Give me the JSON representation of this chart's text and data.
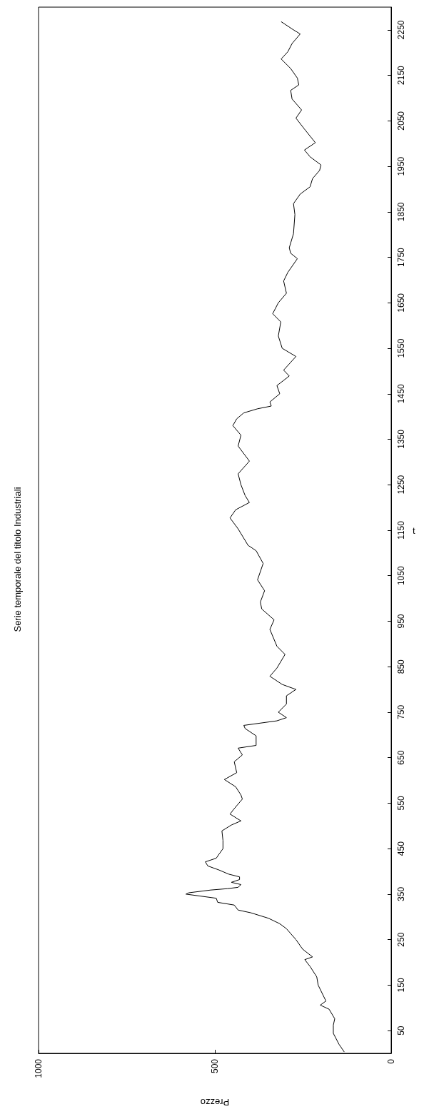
{
  "chart_data": {
    "type": "line",
    "title": "Serie temporale del titolo Industriali",
    "xlabel": "Prezzo",
    "ylabel": "t",
    "x": [
      133,
      148,
      164,
      164,
      160,
      176,
      201,
      185,
      207,
      211,
      230,
      245,
      223,
      251,
      270,
      297,
      316,
      348,
      398,
      434,
      445,
      492,
      496,
      582,
      574,
      512,
      465,
      434,
      426,
      453,
      430,
      430,
      461,
      488,
      520,
      527,
      496,
      488,
      477,
      477,
      480,
      453,
      426,
      457,
      445,
      422,
      426,
      441,
      473,
      438,
      445,
      422,
      434,
      383,
      383,
      414,
      418,
      324,
      297,
      320,
      297,
      297,
      270,
      309,
      344,
      324,
      301,
      324,
      344,
      332,
      367,
      371,
      359,
      379,
      363,
      383,
      406,
      434,
      457,
      441,
      402,
      414,
      426,
      434,
      402,
      434,
      426,
      449,
      438,
      418,
      379,
      340,
      344,
      316,
      324,
      289,
      305,
      270,
      309,
      320,
      313,
      336,
      320,
      297,
      305,
      293,
      266,
      285,
      289,
      277,
      273,
      277,
      258,
      230,
      223,
      203,
      199,
      230,
      246,
      215,
      246,
      270,
      254,
      281,
      285,
      262,
      266,
      285,
      312,
      293,
      281,
      258,
      277,
      312
    ],
    "values": [
      3,
      20,
      44,
      62,
      76,
      97,
      106,
      115,
      150,
      168,
      191,
      206,
      212,
      229,
      250,
      274,
      285,
      297,
      309,
      315,
      326,
      332,
      341,
      350,
      353,
      359,
      362,
      365,
      371,
      376,
      382,
      388,
      394,
      403,
      412,
      421,
      429,
      438,
      450,
      468,
      489,
      502,
      511,
      526,
      538,
      559,
      568,
      586,
      602,
      617,
      641,
      656,
      671,
      677,
      698,
      714,
      721,
      731,
      738,
      750,
      768,
      786,
      800,
      811,
      829,
      847,
      877,
      895,
      932,
      953,
      977,
      992,
      1017,
      1041,
      1077,
      1105,
      1117,
      1153,
      1177,
      1195,
      1211,
      1226,
      1250,
      1274,
      1302,
      1335,
      1359,
      1380,
      1395,
      1408,
      1417,
      1423,
      1432,
      1450,
      1468,
      1489,
      1502,
      1532,
      1550,
      1577,
      1608,
      1626,
      1650,
      1671,
      1698,
      1717,
      1747,
      1759,
      1771,
      1802,
      1844,
      1868,
      1889,
      1905,
      1923,
      1941,
      1953,
      1971,
      1986,
      2002,
      2032,
      2056,
      2074,
      2098,
      2117,
      2129,
      2144,
      2165,
      2186,
      2202,
      2220,
      2241,
      2250,
      2268
    ],
    "color": "#000000",
    "xlim": [
      1000,
      0
    ],
    "xticks": [
      0,
      500,
      1000
    ],
    "ylim": [
      0,
      2300
    ],
    "yticks": [
      50,
      150,
      250,
      350,
      450,
      550,
      650,
      750,
      850,
      950,
      1050,
      1150,
      1250,
      1350,
      1450,
      1550,
      1650,
      1750,
      1850,
      1950,
      2050,
      2150,
      2250
    ]
  }
}
